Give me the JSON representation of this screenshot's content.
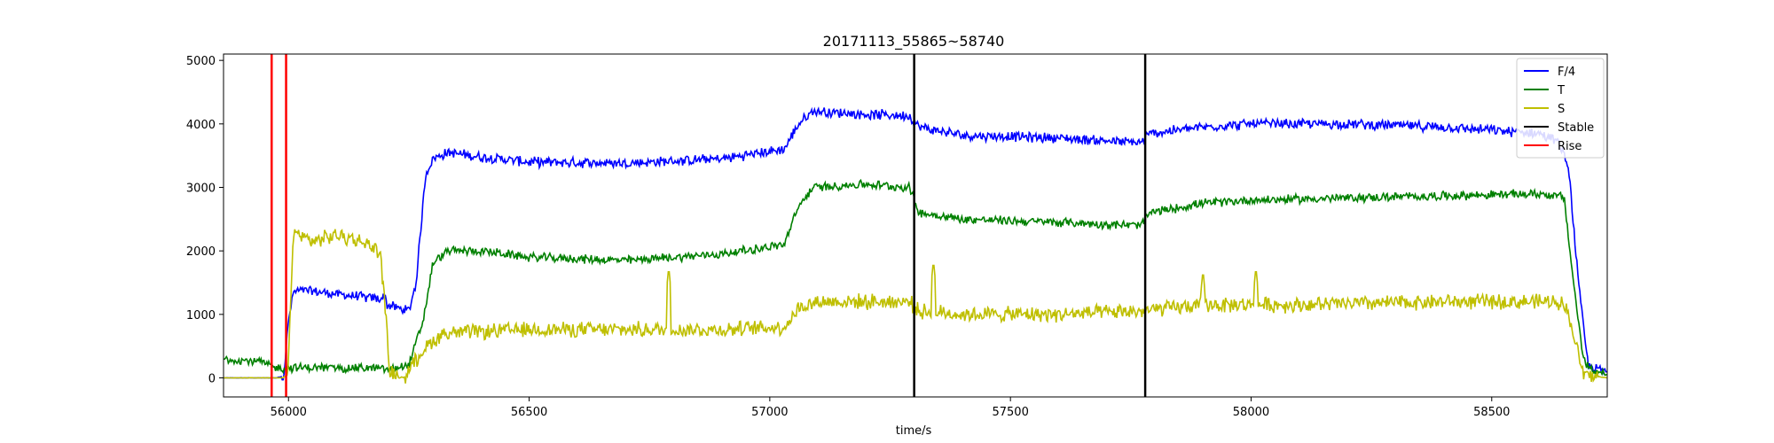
{
  "chart_data": {
    "type": "line",
    "title": "20171113_55865~58740",
    "xlabel": "time/s",
    "ylabel": "",
    "xlim": [
      55865,
      58740
    ],
    "ylim": [
      -300,
      5100
    ],
    "xticks": [
      56000,
      56500,
      57000,
      57500,
      58000,
      58500
    ],
    "yticks": [
      0,
      1000,
      2000,
      3000,
      4000,
      5000
    ],
    "grid": false,
    "legend_position": "top-right",
    "series": [
      {
        "name": "F/4",
        "color": "#0000ff",
        "noise": 90,
        "points": [
          [
            55865,
            0
          ],
          [
            55975,
            0
          ],
          [
            55990,
            30
          ],
          [
            56000,
            900
          ],
          [
            56010,
            1350
          ],
          [
            56030,
            1380
          ],
          [
            56100,
            1320
          ],
          [
            56190,
            1240
          ],
          [
            56200,
            1300
          ],
          [
            56205,
            1150
          ],
          [
            56250,
            1050
          ],
          [
            56265,
            1500
          ],
          [
            56285,
            3200
          ],
          [
            56300,
            3450
          ],
          [
            56330,
            3550
          ],
          [
            56400,
            3480
          ],
          [
            56500,
            3400
          ],
          [
            56700,
            3380
          ],
          [
            56900,
            3450
          ],
          [
            57030,
            3600
          ],
          [
            57060,
            4000
          ],
          [
            57090,
            4200
          ],
          [
            57200,
            4150
          ],
          [
            57290,
            4130
          ],
          [
            57310,
            3950
          ],
          [
            57400,
            3820
          ],
          [
            57600,
            3780
          ],
          [
            57770,
            3700
          ],
          [
            57790,
            3850
          ],
          [
            57900,
            3950
          ],
          [
            58000,
            4000
          ],
          [
            58200,
            4000
          ],
          [
            58400,
            3950
          ],
          [
            58600,
            3850
          ],
          [
            58640,
            3700
          ],
          [
            58660,
            3300
          ],
          [
            58680,
            1500
          ],
          [
            58700,
            200
          ],
          [
            58740,
            80
          ]
        ]
      },
      {
        "name": "T",
        "color": "#008000",
        "noise": 80,
        "points": [
          [
            55865,
            300
          ],
          [
            55940,
            260
          ],
          [
            55975,
            150
          ],
          [
            56000,
            160
          ],
          [
            56100,
            160
          ],
          [
            56190,
            150
          ],
          [
            56205,
            130
          ],
          [
            56250,
            200
          ],
          [
            56280,
            900
          ],
          [
            56300,
            1800
          ],
          [
            56330,
            2000
          ],
          [
            56400,
            2000
          ],
          [
            56500,
            1900
          ],
          [
            56700,
            1850
          ],
          [
            56900,
            1950
          ],
          [
            57030,
            2100
          ],
          [
            57060,
            2700
          ],
          [
            57090,
            3000
          ],
          [
            57200,
            3050
          ],
          [
            57290,
            3000
          ],
          [
            57310,
            2600
          ],
          [
            57400,
            2500
          ],
          [
            57600,
            2450
          ],
          [
            57770,
            2400
          ],
          [
            57790,
            2600
          ],
          [
            57900,
            2750
          ],
          [
            58000,
            2800
          ],
          [
            58300,
            2850
          ],
          [
            58600,
            2900
          ],
          [
            58650,
            2850
          ],
          [
            58670,
            1500
          ],
          [
            58690,
            300
          ],
          [
            58710,
            100
          ],
          [
            58740,
            100
          ]
        ]
      },
      {
        "name": "S",
        "color": "#bfbf00",
        "noise": 140,
        "points": [
          [
            55865,
            0
          ],
          [
            55990,
            0
          ],
          [
            56000,
            200
          ],
          [
            56010,
            2300
          ],
          [
            56050,
            2150
          ],
          [
            56100,
            2250
          ],
          [
            56150,
            2150
          ],
          [
            56190,
            2000
          ],
          [
            56200,
            1200
          ],
          [
            56210,
            100
          ],
          [
            56240,
            0
          ],
          [
            56280,
            450
          ],
          [
            56320,
            700
          ],
          [
            56500,
            760
          ],
          [
            56700,
            760
          ],
          [
            56900,
            760
          ],
          [
            57030,
            800
          ],
          [
            57060,
            1100
          ],
          [
            57100,
            1200
          ],
          [
            57290,
            1200
          ],
          [
            57310,
            1050
          ],
          [
            57400,
            1000
          ],
          [
            57600,
            1000
          ],
          [
            57770,
            1050
          ],
          [
            57900,
            1150
          ],
          [
            58100,
            1150
          ],
          [
            58400,
            1200
          ],
          [
            58650,
            1200
          ],
          [
            58670,
            700
          ],
          [
            58690,
            50
          ],
          [
            58740,
            0
          ]
        ],
        "spikes": [
          [
            56790,
            1750
          ],
          [
            57340,
            1850
          ],
          [
            57900,
            1700
          ],
          [
            58010,
            1750
          ]
        ]
      }
    ],
    "vlines": [
      {
        "name": "Stable",
        "color": "#000000",
        "x": [
          57300,
          57780
        ]
      },
      {
        "name": "Rise",
        "color": "#ff0000",
        "x": [
          55965,
          55995
        ]
      }
    ],
    "legend": [
      {
        "label": "F/4",
        "color": "#0000ff"
      },
      {
        "label": "T",
        "color": "#008000"
      },
      {
        "label": "S",
        "color": "#bfbf00"
      },
      {
        "label": "Stable",
        "color": "#000000"
      },
      {
        "label": "Rise",
        "color": "#ff0000"
      }
    ]
  }
}
